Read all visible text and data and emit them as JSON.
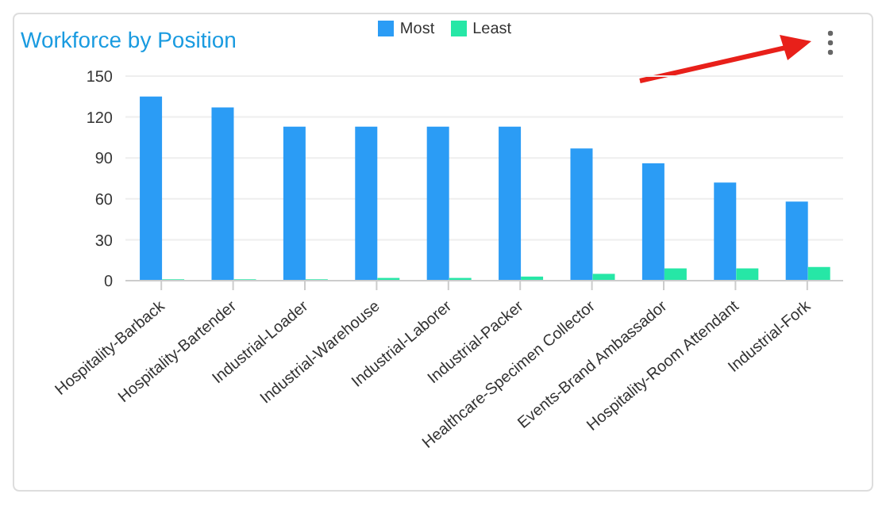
{
  "chart_data": {
    "type": "bar",
    "title": "Workforce by Position",
    "categories": [
      "Hospitality-Barback",
      "Hospitality-Bartender",
      "Industrial-Loader",
      "Industrial-Warehouse",
      "Industrial-Laborer",
      "Industrial-Packer",
      "Healthcare-Specimen Collector",
      "Events-Brand Ambassador",
      "Hospitality-Room Attendant",
      "Industrial-Fork"
    ],
    "series": [
      {
        "name": "Most",
        "color": "#2b9cf5",
        "values": [
          135,
          127,
          113,
          113,
          113,
          113,
          97,
          86,
          72,
          58
        ]
      },
      {
        "name": "Least",
        "color": "#26e7a6",
        "values": [
          1,
          1,
          1,
          2,
          2,
          3,
          5,
          9,
          9,
          10
        ]
      }
    ],
    "ylim": [
      0,
      150
    ],
    "yticks": [
      0,
      30,
      60,
      90,
      120,
      150
    ],
    "grid": "y",
    "legend": "top"
  }
}
